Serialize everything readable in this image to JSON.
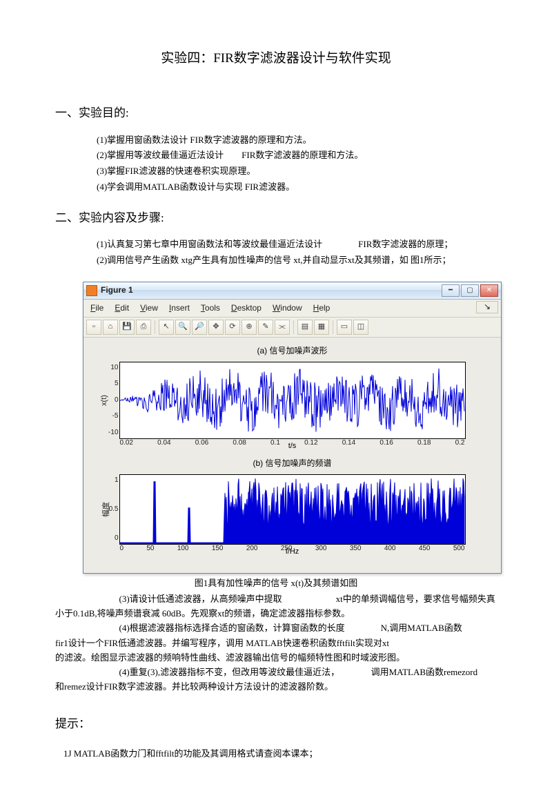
{
  "title": "实验四：FIR数字滤波器设计与软件实现",
  "sections": {
    "purpose_heading": "一、实验目的:",
    "purpose_items": [
      "(1)掌握用窗函数法设计 FIR数字滤波器的原理和方法。",
      "(2)掌握用等波纹最佳逼近法设计　　FIR数字滤波器的原理和方法。",
      "(3)掌握FIR滤波器的快速卷积实现原理。",
      "(4)学会调用MATLAB函数设计与实现 FIR滤波器。"
    ],
    "steps_heading": "二、实验内容及步骤:",
    "steps_before_fig": [
      "(1)认真复习第七章中用窗函数法和等波纹最佳逼近法设计　　　　FIR数字滤波器的原理；",
      "(2)调用信号产生函数 xtg产生具有加性噪声的信号 xt,并自动显示xt及其频谱，如 图1所示；"
    ],
    "fig_caption": "图1具有加性噪声的信号 x(t)及其频谱如图",
    "steps_after_fig": [
      "(3)请设计低通滤波器，从高频噪声中提取　　　　　　xt中的单频调幅信号，要求信号幅频失真",
      "小于0.1dB,将噪声频谱衰减 60dB。先观察xt的频谱，确定滤波器指标参数。",
      "(4)根据滤波器指标选择合适的窗函数，计算窗函数的长度　　　　N,调用MATLAB函数",
      "fir1设计一个FIR低通滤波器。并编写程序，调用 MATLAB快速卷积函数fftfilt实现对xt",
      "的滤波。绘图显示滤波器的频响特性曲线、滤波器输出信号的幅频特性图和时域波形图。",
      "(4)重复(3),滤波器指标不变，但改用等波纹最佳逼近法，　　　　调用MATLAB函数remezord",
      "和remez设计FIR数字滤波器。并比较两种设计方法设计的滤波器阶数。"
    ],
    "hint_heading": "提示：",
    "hint_items": [
      "1J MATLAB函数力门和fftfilt的功能及其调用格式请查阅本课本；"
    ]
  },
  "figure": {
    "window_title": "Figure 1",
    "menus": [
      "File",
      "Edit",
      "View",
      "Insert",
      "Tools",
      "Desktop",
      "Window",
      "Help"
    ],
    "toolbar_icons": [
      "new",
      "open",
      "save",
      "print",
      "arrow",
      "zoom-in",
      "zoom-out",
      "pan",
      "rotate",
      "data-cursor",
      "brush",
      "link",
      "colorbar",
      "legend",
      "hide",
      "dock"
    ],
    "subplot_a": {
      "title": "(a) 信号加噪声波形",
      "ylabel": "x(t)",
      "xlabel": "t/s",
      "x_ticks": [
        "0.02",
        "0.04",
        "0.06",
        "0.08",
        "0.1",
        "0.12",
        "0.14",
        "0.16",
        "0.18",
        "0.2"
      ],
      "y_ticks": [
        "10",
        "5",
        "0",
        "-5",
        "-10"
      ],
      "line_color": "#0000d8",
      "axes_color": "#000000",
      "bg": "#ffffff"
    },
    "subplot_b": {
      "title": "(b) 信号加噪声的频谱",
      "ylabel": "幅度",
      "xlabel": "f/Hz",
      "x_ticks": [
        "0",
        "50",
        "100",
        "150",
        "200",
        "250",
        "300",
        "350",
        "400",
        "450",
        "500"
      ],
      "y_ticks": [
        "1",
        "0.5",
        "0"
      ],
      "line_color": "#0000d8",
      "axes_color": "#000000",
      "bg": "#ffffff"
    }
  }
}
